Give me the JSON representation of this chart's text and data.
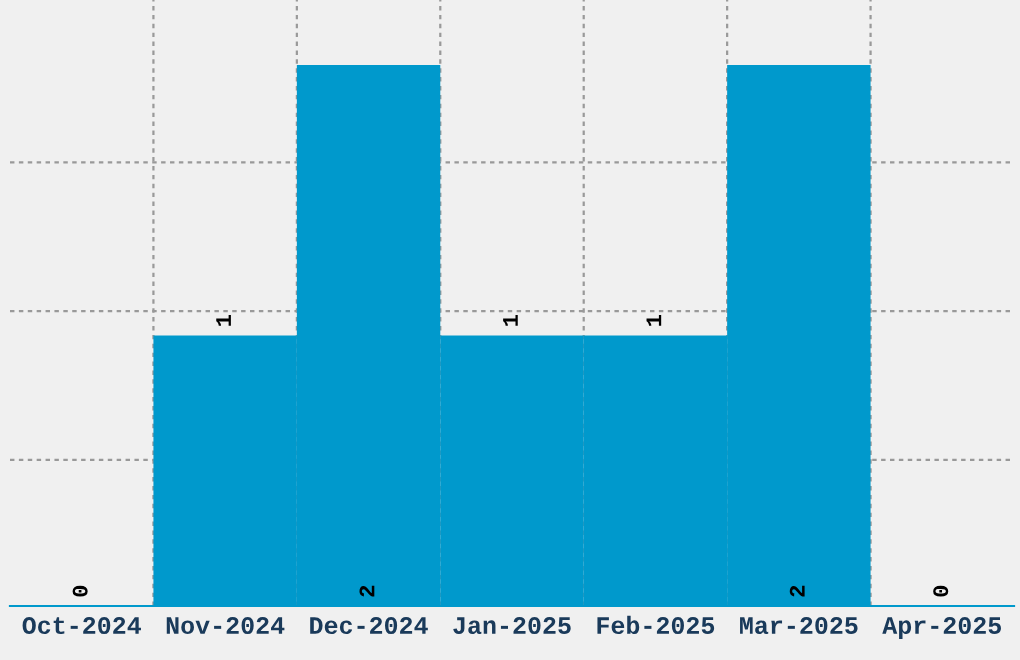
{
  "chart_data": {
    "type": "bar",
    "categories": [
      "Oct-2024",
      "Nov-2024",
      "Dec-2024",
      "Jan-2025",
      "Feb-2025",
      "Mar-2025",
      "Apr-2025"
    ],
    "values": [
      0,
      1,
      2,
      1,
      1,
      2,
      0
    ],
    "color": "#0099cc",
    "data_labels": true,
    "grid": true,
    "ylim": [
      0,
      2.24
    ],
    "yticks": [
      {
        "value": 0.54,
        "label": null
      },
      {
        "value": 1.09,
        "label": null
      },
      {
        "value": 1.64,
        "label": null
      }
    ]
  }
}
